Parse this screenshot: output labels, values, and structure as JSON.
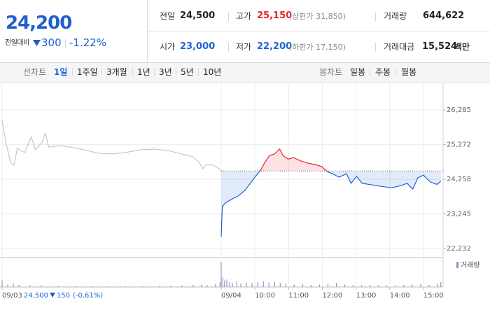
{
  "summary": {
    "price": "24,200",
    "change_label": "전일대비",
    "change": "300",
    "change_rate": "-1.22%",
    "stats": [
      {
        "label": "전일",
        "value": "24,500",
        "color": "#222222"
      },
      {
        "label": "고가",
        "value": "25,150",
        "note": "(상한가 31,850)",
        "color": "#e8242b"
      },
      {
        "label": "거래량",
        "value": "644,622",
        "color": "#222222"
      },
      {
        "label": "시가",
        "value": "23,000",
        "color": "#1e63d3"
      },
      {
        "label": "저가",
        "value": "22,200",
        "note": "(하한가 17,150)",
        "color": "#1e63d3"
      },
      {
        "label": "거래대금",
        "value": "15,524",
        "unit": "백만",
        "color": "#222222"
      }
    ]
  },
  "tabs": {
    "line_label": "선차트",
    "periods": [
      "1일",
      "1주일",
      "3개월",
      "1년",
      "3년",
      "5년",
      "10년"
    ],
    "selected": 0,
    "candle_label": "봉차트",
    "candles": [
      "일봉",
      "주봉",
      "월봉"
    ]
  },
  "prev_day_info": {
    "close": "24,500",
    "change": "150",
    "change_rate": "(-0.61%)"
  },
  "chart_data": [
    {
      "type": "line",
      "xlim": [
        0,
        785
      ],
      "xticks": [
        {
          "value": 0,
          "label": "09/03"
        },
        {
          "value": 390,
          "label": "09/04"
        },
        {
          "value": 450,
          "label": "10:00"
        },
        {
          "value": 510,
          "label": "11:00"
        },
        {
          "value": 570,
          "label": "12:00"
        },
        {
          "value": 630,
          "label": "13:00"
        },
        {
          "value": 690,
          "label": "14:00"
        },
        {
          "value": 750,
          "label": "15:00"
        }
      ],
      "ylim": [
        22030,
        26880
      ],
      "yticks": [
        {
          "value": 22232,
          "label": "22,232"
        },
        {
          "value": 23245,
          "label": "23,245"
        },
        {
          "value": 24258,
          "label": "24,258"
        },
        {
          "value": 25272,
          "label": "25,272"
        },
        {
          "value": 26285,
          "label": "26,285"
        }
      ],
      "grid": true,
      "reference_line": 24500,
      "up_color": "#e8242b",
      "down_color": "#1e63d3",
      "series": [
        {
          "color": "#bdbdbd",
          "x": [
            0,
            6,
            15,
            21,
            27,
            40,
            52,
            59,
            71,
            77,
            83,
            102,
            121,
            146,
            171,
            196,
            220,
            245,
            270,
            295,
            320,
            339,
            351,
            357,
            364,
            376,
            385,
            390
          ],
          "values": [
            25980,
            25400,
            24750,
            24670,
            25160,
            25040,
            25500,
            25120,
            25340,
            25600,
            25200,
            25240,
            25200,
            25120,
            25020,
            25000,
            25040,
            25120,
            25140,
            25100,
            25000,
            24920,
            24750,
            24570,
            24690,
            24670,
            24580,
            24500
          ]
        },
        {
          "color": "#1e63d3",
          "x": [
            390,
            392,
            397,
            407,
            420,
            432,
            442,
            451,
            460,
            467,
            476,
            485,
            494,
            500,
            509,
            519,
            532,
            544,
            557,
            569,
            579,
            588,
            600,
            613,
            621,
            631,
            641,
            656,
            675,
            694,
            709,
            721,
            731,
            740,
            750,
            762,
            774,
            781
          ],
          "values": [
            22580,
            23460,
            23560,
            23660,
            23770,
            23930,
            24140,
            24340,
            24520,
            24730,
            24950,
            25000,
            25140,
            24950,
            24850,
            24890,
            24790,
            24730,
            24690,
            24630,
            24480,
            24420,
            24320,
            24420,
            24140,
            24340,
            24140,
            24100,
            24050,
            24010,
            24070,
            24140,
            23970,
            24300,
            24380,
            24180,
            24110,
            24200
          ]
        }
      ]
    },
    {
      "type": "bar",
      "xlim": [
        0,
        785
      ],
      "ylim": [
        0,
        32000
      ],
      "series": [
        {
          "name": "거래량",
          "color": "#9d8fc6",
          "x": [
            0,
            10,
            20,
            30,
            50,
            70,
            100,
            130,
            160,
            190,
            220,
            250,
            280,
            300,
            320,
            340,
            355,
            365,
            380,
            388,
            390,
            393,
            396,
            400,
            405,
            410,
            418,
            425,
            435,
            445,
            455,
            465,
            475,
            485,
            495,
            505,
            520,
            535,
            550,
            565,
            580,
            595,
            610,
            625,
            640,
            655,
            670,
            685,
            700,
            715,
            730,
            745,
            760,
            775,
            781
          ],
          "values": [
            8000,
            3000,
            4000,
            2500,
            2000,
            1800,
            1200,
            1000,
            900,
            800,
            900,
            1000,
            1200,
            1500,
            1800,
            2500,
            3000,
            2200,
            3500,
            6000,
            30000,
            12000,
            8000,
            9000,
            6000,
            5000,
            7000,
            4000,
            5000,
            4500,
            6000,
            7000,
            5500,
            6500,
            5000,
            4000,
            3000,
            3500,
            2500,
            3000,
            4000,
            5000,
            3000,
            2500,
            2000,
            2500,
            2000,
            1800,
            2000,
            2500,
            3000,
            3500,
            2500,
            4000,
            6000
          ]
        }
      ]
    }
  ]
}
